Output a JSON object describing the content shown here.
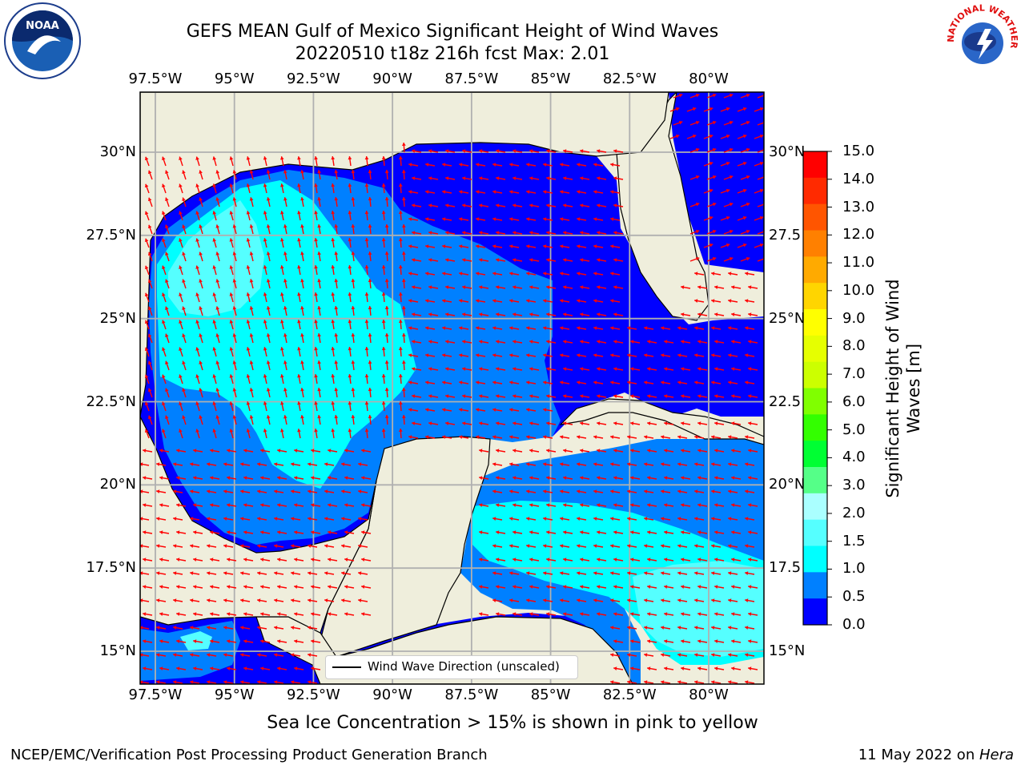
{
  "title": {
    "line1": "GEFS MEAN Gulf of Mexico Significant Height of Wind Waves",
    "line2": "20220510 t18z 216h fcst   Max: 2.01"
  },
  "axes": {
    "lon_ticks": [
      "97.5°W",
      "95°W",
      "92.5°W",
      "90°W",
      "87.5°W",
      "85°W",
      "82.5°W",
      "80°W"
    ],
    "lat_ticks": [
      "30°N",
      "27.5°N",
      "25°N",
      "22.5°N",
      "20°N",
      "17.5°N",
      "15°N"
    ],
    "lat_ticks_right": [
      "30°N",
      "27.5",
      "25°N",
      "22.5",
      "20°N",
      "17.5",
      "15°N"
    ]
  },
  "legend": {
    "label": "Wind Wave Direction (unscaled)"
  },
  "colorbar": {
    "title_line1": "Significant Height of Wind",
    "title_line2": "Waves [m]",
    "levels": [
      "15.0",
      "14.0",
      "13.0",
      "12.0",
      "11.0",
      "10.0",
      "9.0",
      "8.0",
      "7.0",
      "6.0",
      "5.0",
      "4.0",
      "3.0",
      "2.0",
      "1.5",
      "1.0",
      "0.5",
      "0.0"
    ],
    "colors": [
      "#ff0000",
      "#ff2a00",
      "#ff5500",
      "#ff8000",
      "#ffaa00",
      "#ffd500",
      "#ffff00",
      "#e6ff00",
      "#ccff00",
      "#80ff00",
      "#33ff00",
      "#00ff33",
      "#55ff88",
      "#aaffff",
      "#55ffff",
      "#00ffff",
      "#0080ff",
      "#0000ff"
    ]
  },
  "colors": {
    "land": "#efeedc",
    "deep_blue": "#0000ff",
    "mid_blue": "#0080ff",
    "cyan": "#00ffff",
    "light_cyan": "#55ffff",
    "pale_cyan": "#aaffff",
    "arrow": "#ff0000"
  },
  "notes": {
    "sea_ice": "Sea Ice Concentration > 15% is shown in pink to yellow",
    "branch": "NCEP/EMC/Verification Post Processing Product Generation Branch",
    "date": "11 May 2022 on ",
    "machine": "Hera"
  },
  "logos": {
    "left": "noaa-logo",
    "right": "nws-logo",
    "nws_text": "NATIONAL WEATHER SERVICE"
  }
}
